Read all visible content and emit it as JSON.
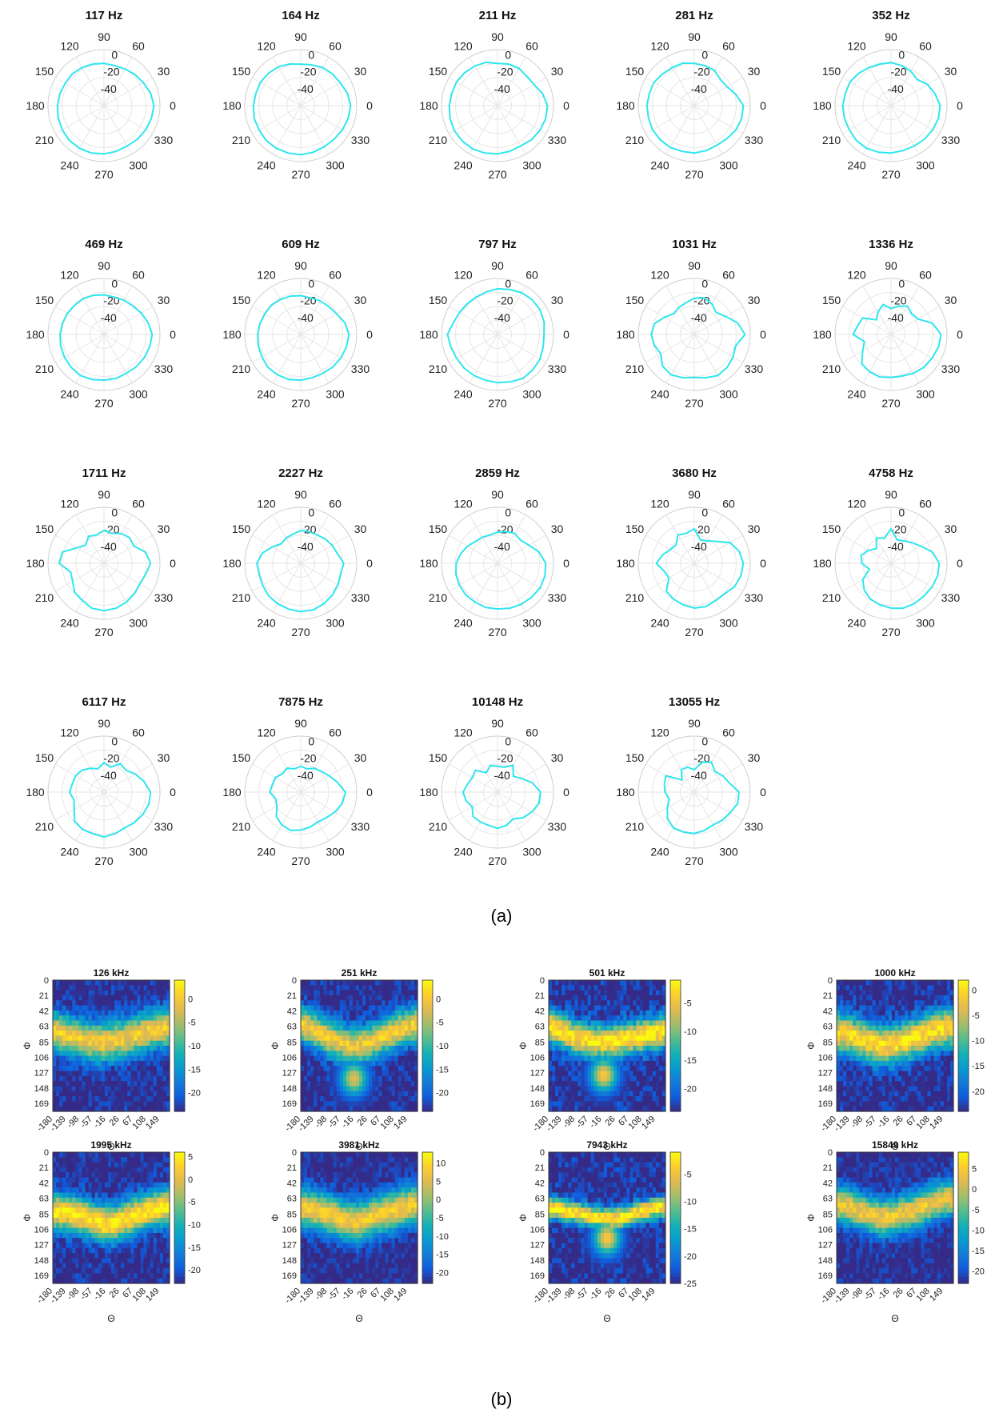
{
  "figure": {
    "panel_a_label": "(a)",
    "panel_b_label": "(b)"
  },
  "chart_data": [
    {
      "type": "polar",
      "panel": "(a)",
      "angle_ticks_deg": [
        0,
        30,
        60,
        90,
        120,
        150,
        180,
        210,
        240,
        270,
        300,
        330
      ],
      "radial_ticks_db": [
        0,
        -20,
        -40
      ],
      "rlim_db": [
        -60,
        5
      ],
      "grid": true,
      "series_color": "#2ee6ee",
      "plots": [
        {
          "title": "117 Hz",
          "r": [
            -2,
            -4,
            -7,
            -9,
            -11,
            -12,
            -11,
            -10,
            -9,
            -8,
            -8,
            -7,
            -6,
            -5,
            -4,
            -3,
            -3,
            -3,
            -4,
            -5,
            -6,
            -5,
            -4,
            -3
          ]
        },
        {
          "title": "164 Hz",
          "r": [
            -2,
            -4,
            -7,
            -8,
            -9,
            -11,
            -12,
            -10,
            -8,
            -7,
            -6,
            -6,
            -5,
            -4,
            -4,
            -3,
            -3,
            -3,
            -3,
            -4,
            -5,
            -5,
            -4,
            -3
          ]
        },
        {
          "title": "211 Hz",
          "r": [
            -2,
            -6,
            -11,
            -12,
            -10,
            -10,
            -11,
            -8,
            -7,
            -6,
            -5,
            -5,
            -4,
            -3,
            -2,
            -2,
            -2,
            -3,
            -4,
            -5,
            -6,
            -4,
            -3,
            -2
          ]
        },
        {
          "title": "281 Hz",
          "r": [
            -3,
            -10,
            -16,
            -17,
            -13,
            -12,
            -11,
            -9,
            -9,
            -8,
            -6,
            -6,
            -5,
            -5,
            -4,
            -4,
            -4,
            -5,
            -5,
            -6,
            -7,
            -6,
            -4,
            -3
          ]
        },
        {
          "title": "352 Hz",
          "r": [
            -3,
            -7,
            -11,
            -17,
            -14,
            -12,
            -10,
            -10,
            -9,
            -7,
            -5,
            -5,
            -4,
            -4,
            -4,
            -3,
            -3,
            -4,
            -5,
            -6,
            -6,
            -5,
            -4,
            -3
          ]
        },
        {
          "title": "469 Hz",
          "r": [
            -4,
            -7,
            -10,
            -13,
            -14,
            -15,
            -14,
            -13,
            -12,
            -12,
            -11,
            -10,
            -9,
            -8,
            -7,
            -6,
            -5,
            -6,
            -7,
            -7,
            -8,
            -7,
            -6,
            -5
          ]
        },
        {
          "title": "609 Hz",
          "r": [
            -4,
            -7,
            -12,
            -14,
            -15,
            -16,
            -15,
            -14,
            -13,
            -12,
            -12,
            -11,
            -10,
            -9,
            -8,
            -6,
            -6,
            -6,
            -7,
            -8,
            -8,
            -7,
            -6,
            -5
          ]
        },
        {
          "title": "797 Hz",
          "r": [
            -6,
            -4,
            -3,
            -3,
            -4,
            -6,
            -7,
            -9,
            -10,
            -10,
            -9,
            -7,
            -2,
            -4,
            -5,
            -5,
            -5,
            -5,
            -4,
            -3,
            -1,
            -2,
            -3,
            -5
          ]
        },
        {
          "title": "1031 Hz",
          "r": [
            -1,
            -8,
            -18,
            -24,
            -19,
            -16,
            -18,
            -22,
            -24,
            -26,
            -20,
            -12,
            -10,
            -12,
            -15,
            -8,
            -6,
            -8,
            -10,
            -8,
            -5,
            -6,
            -8,
            -10
          ]
        },
        {
          "title": "1336 Hz",
          "r": [
            -2,
            -10,
            -24,
            -26,
            -22,
            -26,
            -30,
            -24,
            -30,
            -36,
            -22,
            -20,
            -16,
            -28,
            -22,
            -12,
            -10,
            -9,
            -10,
            -10,
            -8,
            -6,
            -5,
            -3
          ]
        },
        {
          "title": "1711 Hz",
          "r": [
            -6,
            -10,
            -20,
            -18,
            -20,
            -24,
            -22,
            -26,
            -24,
            -30,
            -24,
            -10,
            -8,
            -20,
            -18,
            -12,
            -10,
            -6,
            -5,
            -6,
            -8,
            -10,
            -12,
            -10
          ]
        },
        {
          "title": "2227 Hz",
          "r": [
            -10,
            -16,
            -18,
            -20,
            -22,
            -22,
            -22,
            -25,
            -26,
            -28,
            -22,
            -14,
            -9,
            -10,
            -9,
            -7,
            -6,
            -5,
            -4,
            -4,
            -6,
            -8,
            -10,
            -12
          ]
        },
        {
          "title": "2859 Hz",
          "r": [
            -4,
            -10,
            -18,
            -22,
            -20,
            -22,
            -24,
            -26,
            -25,
            -24,
            -20,
            -16,
            -12,
            -10,
            -9,
            -8,
            -8,
            -7,
            -7,
            -6,
            -5,
            -4,
            -3,
            -3
          ]
        },
        {
          "title": "3680 Hz",
          "r": [
            -3,
            -6,
            -12,
            -24,
            -30,
            -32,
            -20,
            -24,
            -22,
            -30,
            -28,
            -22,
            -16,
            -24,
            -26,
            -14,
            -12,
            -10,
            -8,
            -8,
            -10,
            -10,
            -6,
            -4
          ]
        },
        {
          "title": "4758 Hz",
          "r": [
            -4,
            -10,
            -20,
            -26,
            -30,
            -32,
            -20,
            -30,
            -26,
            -36,
            -30,
            -24,
            -26,
            -34,
            -22,
            -16,
            -12,
            -10,
            -8,
            -6,
            -6,
            -6,
            -5,
            -4
          ]
        },
        {
          "title": "6117 Hz",
          "r": [
            -6,
            -12,
            -18,
            -24,
            -22,
            -30,
            -26,
            -32,
            -28,
            -24,
            -22,
            -22,
            -20,
            -24,
            -20,
            -12,
            -10,
            -10,
            -8,
            -10,
            -12,
            -10,
            -8,
            -6
          ]
        },
        {
          "title": "7875 Hz",
          "r": [
            -8,
            -16,
            -22,
            -26,
            -28,
            -32,
            -30,
            -32,
            -28,
            -30,
            -26,
            -26,
            -24,
            -30,
            -28,
            -20,
            -16,
            -14,
            -16,
            -18,
            -20,
            -18,
            -14,
            -10
          ]
        },
        {
          "title": "10148 Hz",
          "r": [
            -10,
            -18,
            -28,
            -34,
            -24,
            -30,
            -30,
            -28,
            -34,
            -24,
            -26,
            -24,
            -20,
            -22,
            -26,
            -20,
            -20,
            -20,
            -18,
            -20,
            -24,
            -18,
            -14,
            -10
          ]
        },
        {
          "title": "13055 Hz",
          "r": [
            -8,
            -18,
            -22,
            -26,
            -20,
            -24,
            -34,
            -30,
            -30,
            -40,
            -22,
            -24,
            -26,
            -30,
            -24,
            -16,
            -12,
            -12,
            -12,
            -14,
            -16,
            -14,
            -12,
            -8
          ]
        }
      ]
    },
    {
      "type": "heatmap",
      "panel": "(b)",
      "xlabel": "Θ",
      "ylabel": "Φ",
      "x_ticks": [
        "-180",
        "-139",
        "-98",
        "-57",
        "-16",
        "26",
        "67",
        "108",
        "149"
      ],
      "y_ticks": [
        "0",
        "21",
        "42",
        "63",
        "85",
        "106",
        "127",
        "148",
        "169"
      ],
      "colormap": "parula",
      "maps": [
        {
          "title": "126 kHz",
          "clim": [
            -24,
            4
          ],
          "cbar_ticks": [
            0,
            -5,
            -10,
            -15,
            -20
          ],
          "band_center": [
            70,
            75,
            82,
            86,
            84,
            80,
            74,
            68,
            64
          ],
          "band_width": 26,
          "peak": 0,
          "tail": null
        },
        {
          "title": "251 kHz",
          "clim": [
            -24,
            4
          ],
          "cbar_ticks": [
            0,
            -5,
            -10,
            -15,
            -20
          ],
          "band_center": [
            60,
            70,
            80,
            88,
            90,
            84,
            74,
            66,
            60
          ],
          "band_width": 24,
          "peak": 0,
          "tail": [
            -16,
            135
          ]
        },
        {
          "title": "501 kHz",
          "clim": [
            -24,
            -1
          ],
          "cbar_ticks": [
            -5,
            -10,
            -15,
            -20
          ],
          "band_center": [
            62,
            72,
            80,
            84,
            86,
            82,
            78,
            74,
            70
          ],
          "band_width": 22,
          "peak": -2,
          "tail": [
            -10,
            130
          ]
        },
        {
          "title": "1000 kHz",
          "clim": [
            -24,
            2
          ],
          "cbar_ticks": [
            0,
            -5,
            -10,
            -15,
            -20
          ],
          "band_center": [
            72,
            76,
            84,
            90,
            88,
            82,
            74,
            68,
            64
          ],
          "band_width": 26,
          "peak": 0,
          "tail": null
        },
        {
          "title": "1995 kHz",
          "clim": [
            -23,
            6
          ],
          "cbar_ticks": [
            5,
            0,
            -5,
            -10,
            -15,
            -20
          ],
          "band_center": [
            82,
            84,
            88,
            96,
            100,
            92,
            84,
            78,
            74
          ],
          "band_width": 24,
          "peak": 5,
          "tail": null
        },
        {
          "title": "3981 kHz",
          "clim": [
            -23,
            13
          ],
          "cbar_ticks": [
            10,
            5,
            0,
            -5,
            -10,
            -15,
            -20
          ],
          "band_center": [
            76,
            80,
            86,
            94,
            96,
            88,
            82,
            76,
            72
          ],
          "band_width": 26,
          "peak": 8,
          "tail": null
        },
        {
          "title": "7943 kHz",
          "clim": [
            -25,
            -1
          ],
          "cbar_ticks": [
            -5,
            -10,
            -15,
            -20,
            -25
          ],
          "band_center": [
            76,
            80,
            84,
            88,
            92,
            90,
            84,
            78,
            74
          ],
          "band_width": 14,
          "peak": -2,
          "tail": [
            0,
            118
          ]
        },
        {
          "title": "15849 kHz",
          "clim": [
            -23,
            9
          ],
          "cbar_ticks": [
            5,
            0,
            -5,
            -10,
            -15,
            -20
          ],
          "band_center": [
            72,
            76,
            84,
            90,
            88,
            82,
            74,
            66,
            62
          ],
          "band_width": 24,
          "peak": 4,
          "tail": null
        }
      ]
    }
  ]
}
